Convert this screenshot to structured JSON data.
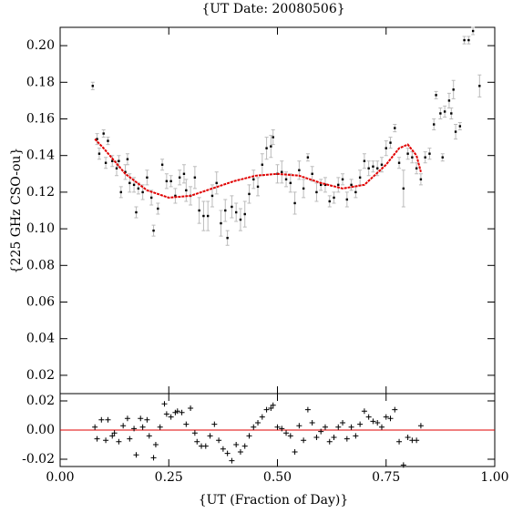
{
  "chart_data": [
    {
      "type": "scatter",
      "title": "{UT Date: 20080506}",
      "ylabel": "{225 GHz CSO-ou}",
      "ylim": [
        0.01,
        0.21
      ],
      "yticks": [
        0.02,
        0.04,
        0.06,
        0.08,
        {
          "value": 0.1,
          "label": "0.10"
        },
        0.12,
        0.14,
        0.16,
        0.18,
        {
          "value": 0.2,
          "label": "0.20"
        }
      ],
      "series": [
        {
          "style": "errorbar",
          "color": "#000000",
          "error_color": "#bbbbbb",
          "x": [
            0.075,
            0.085,
            0.09,
            0.1,
            0.105,
            0.11,
            0.12,
            0.13,
            0.135,
            0.14,
            0.15,
            0.155,
            0.16,
            0.17,
            0.175,
            0.18,
            0.19,
            0.2,
            0.21,
            0.215,
            0.225,
            0.235,
            0.245,
            0.255,
            0.265,
            0.275,
            0.285,
            0.29,
            0.3,
            0.31,
            0.32,
            0.33,
            0.34,
            0.35,
            0.36,
            0.37,
            0.38,
            0.385,
            0.395,
            0.405,
            0.415,
            0.425,
            0.435,
            0.445,
            0.455,
            0.465,
            0.475,
            0.485,
            0.49,
            0.5,
            0.51,
            0.52,
            0.53,
            0.54,
            0.55,
            0.56,
            0.57,
            0.58,
            0.59,
            0.6,
            0.61,
            0.62,
            0.63,
            0.64,
            0.65,
            0.66,
            0.67,
            0.68,
            0.69,
            0.7,
            0.71,
            0.72,
            0.73,
            0.74,
            0.75,
            0.76,
            0.77,
            0.78,
            0.79,
            0.8,
            0.81,
            0.82,
            0.83,
            0.84,
            0.85,
            0.86,
            0.865,
            0.875,
            0.88,
            0.885,
            0.895,
            0.9,
            0.905,
            0.91,
            0.92,
            0.93,
            0.94,
            0.95,
            0.965
          ],
          "values": [
            0.178,
            0.149,
            0.141,
            0.152,
            0.136,
            0.148,
            0.137,
            0.133,
            0.137,
            0.12,
            0.131,
            0.138,
            0.125,
            0.124,
            0.109,
            0.122,
            0.12,
            0.128,
            0.117,
            0.099,
            0.111,
            0.135,
            0.126,
            0.126,
            0.118,
            0.128,
            0.13,
            0.121,
            0.118,
            0.128,
            0.11,
            0.107,
            0.107,
            0.118,
            0.125,
            0.103,
            0.11,
            0.095,
            0.112,
            0.109,
            0.105,
            0.108,
            0.119,
            0.127,
            0.123,
            0.135,
            0.144,
            0.145,
            0.15,
            0.13,
            0.131,
            0.127,
            0.125,
            0.114,
            0.132,
            0.122,
            0.139,
            0.13,
            0.12,
            0.124,
            0.124,
            0.115,
            0.117,
            0.124,
            0.127,
            0.116,
            0.124,
            0.12,
            0.128,
            0.137,
            0.133,
            0.134,
            0.133,
            0.135,
            0.144,
            0.147,
            0.155,
            0.136,
            0.122,
            0.141,
            0.139,
            0.133,
            0.127,
            0.139,
            0.141,
            0.157,
            0.173,
            0.163,
            0.139,
            0.164,
            0.17,
            0.163,
            0.176,
            0.153,
            0.156,
            0.203,
            0.203,
            0.208,
            0.178
          ],
          "errors": [
            0.002,
            0.003,
            0.003,
            0.002,
            0.003,
            0.002,
            0.003,
            0.004,
            0.003,
            0.003,
            0.004,
            0.003,
            0.005,
            0.004,
            0.003,
            0.003,
            0.004,
            0.004,
            0.004,
            0.003,
            0.003,
            0.003,
            0.004,
            0.003,
            0.004,
            0.004,
            0.005,
            0.006,
            0.005,
            0.006,
            0.007,
            0.008,
            0.008,
            0.006,
            0.006,
            0.007,
            0.006,
            0.004,
            0.006,
            0.005,
            0.006,
            0.007,
            0.005,
            0.005,
            0.005,
            0.006,
            0.006,
            0.006,
            0.004,
            0.005,
            0.006,
            0.004,
            0.005,
            0.006,
            0.005,
            0.005,
            0.002,
            0.004,
            0.005,
            0.003,
            0.004,
            0.003,
            0.003,
            0.004,
            0.003,
            0.004,
            0.003,
            0.003,
            0.004,
            0.004,
            0.004,
            0.003,
            0.004,
            0.004,
            0.004,
            0.003,
            0.002,
            0.003,
            0.01,
            0.003,
            0.003,
            0.003,
            0.003,
            0.003,
            0.003,
            0.003,
            0.002,
            0.003,
            0.002,
            0.003,
            0.004,
            0.003,
            0.005,
            0.004,
            0.002,
            0.002,
            0.002,
            0.002,
            0.006
          ]
        },
        {
          "style": "line",
          "color": "#e00000",
          "x": [
            0.08,
            0.1,
            0.15,
            0.2,
            0.25,
            0.3,
            0.35,
            0.4,
            0.45,
            0.5,
            0.55,
            0.6,
            0.65,
            0.7,
            0.75,
            0.78,
            0.8,
            0.82,
            0.83
          ],
          "values": [
            0.149,
            0.144,
            0.13,
            0.121,
            0.117,
            0.118,
            0.122,
            0.126,
            0.129,
            0.13,
            0.129,
            0.125,
            0.122,
            0.124,
            0.135,
            0.144,
            0.146,
            0.14,
            0.131
          ]
        }
      ]
    },
    {
      "type": "scatter",
      "xlabel": "{UT (Fraction of Day)}",
      "xlim": [
        0,
        1
      ],
      "xticks": [
        {
          "value": 0,
          "label": "0.00"
        },
        0.25,
        {
          "value": 0.5,
          "label": "0.50"
        },
        0.75,
        {
          "value": 1,
          "label": "1.00"
        }
      ],
      "ylim": [
        -0.025,
        0.025
      ],
      "yticks": [
        -0.02,
        {
          "value": 0,
          "label": "0.00"
        },
        0.02
      ],
      "hline": 0,
      "hline_color": "#e00000",
      "series": [
        {
          "style": "cross",
          "color": "#000000",
          "x": [
            0.08,
            0.085,
            0.095,
            0.105,
            0.11,
            0.12,
            0.125,
            0.135,
            0.145,
            0.155,
            0.16,
            0.17,
            0.175,
            0.185,
            0.19,
            0.2,
            0.205,
            0.215,
            0.22,
            0.23,
            0.24,
            0.245,
            0.255,
            0.265,
            0.27,
            0.28,
            0.29,
            0.3,
            0.31,
            0.315,
            0.325,
            0.335,
            0.345,
            0.355,
            0.365,
            0.375,
            0.385,
            0.395,
            0.405,
            0.415,
            0.425,
            0.435,
            0.445,
            0.455,
            0.465,
            0.475,
            0.485,
            0.49,
            0.5,
            0.51,
            0.52,
            0.53,
            0.54,
            0.55,
            0.56,
            0.57,
            0.58,
            0.59,
            0.6,
            0.61,
            0.62,
            0.63,
            0.64,
            0.65,
            0.66,
            0.67,
            0.68,
            0.69,
            0.7,
            0.71,
            0.72,
            0.73,
            0.74,
            0.75,
            0.76,
            0.77,
            0.78,
            0.79,
            0.8,
            0.81,
            0.82,
            0.83
          ],
          "values": [
            0.002,
            -0.006,
            0.007,
            -0.007,
            0.007,
            -0.004,
            -0.002,
            -0.008,
            0.003,
            0.008,
            -0.006,
            0.001,
            -0.017,
            0.008,
            0.002,
            0.007,
            -0.004,
            -0.019,
            -0.01,
            0.002,
            0.018,
            0.011,
            0.009,
            0.012,
            0.013,
            0.012,
            0.004,
            0.015,
            -0.002,
            -0.008,
            -0.011,
            -0.011,
            -0.004,
            0.004,
            -0.007,
            -0.013,
            -0.016,
            -0.021,
            -0.01,
            -0.015,
            -0.011,
            -0.004,
            0.002,
            0.005,
            0.009,
            0.014,
            0.015,
            0.017,
            0.002,
            0.001,
            -0.002,
            -0.004,
            -0.015,
            0.003,
            -0.007,
            0.014,
            0.005,
            -0.005,
            -0.001,
            0.002,
            -0.008,
            -0.005,
            0.002,
            0.005,
            -0.006,
            0.002,
            -0.004,
            0.004,
            0.013,
            0.009,
            0.006,
            0.005,
            0.002,
            0.009,
            0.008,
            0.014,
            -0.008,
            -0.024,
            -0.005,
            -0.007,
            -0.007,
            0.003
          ]
        }
      ]
    }
  ]
}
